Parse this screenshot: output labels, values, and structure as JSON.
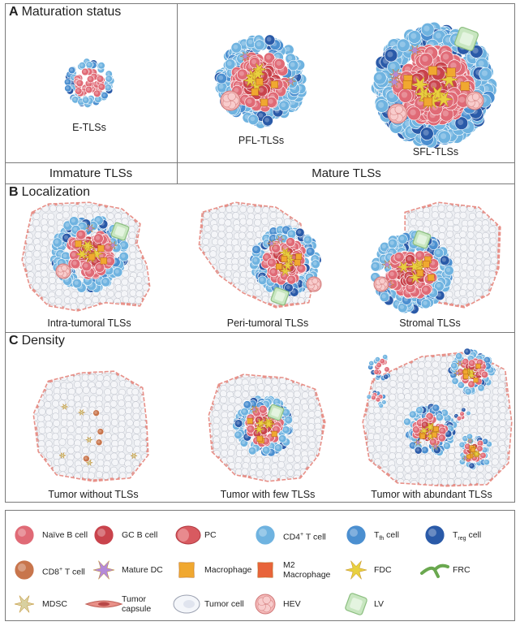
{
  "section_a": {
    "letter": "A",
    "title": "Maturation status",
    "captions": [
      "E-TLSs",
      "PFL-TLSs",
      "SFL-TLSs"
    ],
    "categories": [
      "Immature TLSs",
      "Mature TLSs"
    ]
  },
  "section_b": {
    "letter": "B",
    "title": "Localization",
    "captions": [
      "Intra-tumoral TLSs",
      "Peri-tumoral TLSs",
      "Stromal TLSs"
    ]
  },
  "section_c": {
    "letter": "C",
    "title": "Density",
    "captions": [
      "Tumor without TLSs",
      "Tumor with few TLSs",
      "Tumor with abundant TLSs"
    ]
  },
  "legend": {
    "items": [
      {
        "key": "naive_b",
        "text": "Naïve B cell",
        "color": "#e06a76"
      },
      {
        "key": "gc_b",
        "text": "GC B cell",
        "color": "#c9434c"
      },
      {
        "key": "pc",
        "text": "PC",
        "color": "#d85a60"
      },
      {
        "key": "cd4",
        "text": "CD4",
        "sup": "+",
        "text2": " T cell",
        "color": "#6fb3e0"
      },
      {
        "key": "tfh",
        "text": "T",
        "sub": "fh",
        "text2": " cell",
        "color": "#4b8fd0"
      },
      {
        "key": "treg",
        "text": "T",
        "sub": "reg",
        "text2": " cell",
        "color": "#2a5aa8"
      },
      {
        "key": "cd8",
        "text": "CD8",
        "sup": "+",
        "text2": " T cell",
        "color": "#c8754c"
      },
      {
        "key": "mature_dc",
        "text": "Mature DC",
        "color": "#b48ad8"
      },
      {
        "key": "macrophage",
        "text": "Macrophage",
        "color": "#f0a830"
      },
      {
        "key": "m2",
        "text": "M2",
        "text3": "Macrophage",
        "color": "#e8643a"
      },
      {
        "key": "fdc",
        "text": "FDC",
        "color": "#e8d040"
      },
      {
        "key": "frc",
        "text": "FRC",
        "color": "#6aa84f"
      },
      {
        "key": "mdsc",
        "text": "MDSC",
        "color": "#d8d0a0"
      },
      {
        "key": "tumor_capsule",
        "text": "Tumor",
        "text3": "capsule",
        "color": "#e89088"
      },
      {
        "key": "tumor_cell",
        "text": "Tumor cell",
        "color": "#e8ecf4"
      },
      {
        "key": "hev",
        "text": "HEV",
        "color": "#f4b8b8"
      },
      {
        "key": "lv",
        "text": "LV",
        "color": "#c8e6c0"
      }
    ]
  }
}
